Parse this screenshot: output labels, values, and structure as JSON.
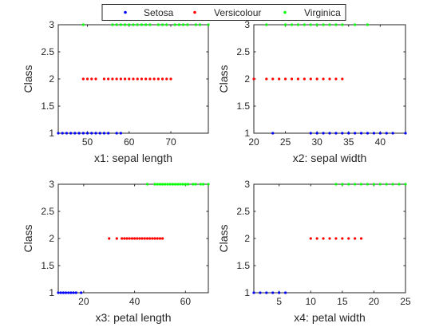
{
  "legend": {
    "placement": "top-center",
    "entries": [
      {
        "name": "Setosa",
        "color": "#0000ff"
      },
      {
        "name": "Versicolour",
        "color": "#ff0000"
      },
      {
        "name": "Virginica",
        "color": "#00ff00"
      }
    ]
  },
  "chart_data": [
    {
      "type": "scatter",
      "xlabel": "x1: sepal length",
      "ylabel": "Class",
      "xlim": [
        43,
        79
      ],
      "ylim": [
        1,
        3
      ],
      "xticks": [
        50,
        60,
        70
      ],
      "yticks": [
        1,
        1.5,
        2,
        2.5,
        3
      ],
      "grid": false,
      "series": [
        {
          "name": "Setosa",
          "y": 1,
          "x": [
            43,
            44,
            45,
            46,
            47,
            48,
            49,
            50,
            51,
            52,
            53,
            54,
            55,
            57,
            58
          ]
        },
        {
          "name": "Versicolour",
          "y": 2,
          "x": [
            49,
            50,
            51,
            52,
            54,
            55,
            56,
            57,
            58,
            59,
            60,
            61,
            62,
            63,
            64,
            65,
            66,
            67,
            68,
            69,
            70
          ]
        },
        {
          "name": "Virginica",
          "y": 3,
          "x": [
            49,
            56,
            57,
            58,
            59,
            60,
            61,
            62,
            63,
            64,
            65,
            67,
            68,
            69,
            71,
            72,
            73,
            74,
            76,
            77,
            79
          ]
        }
      ]
    },
    {
      "type": "scatter",
      "xlabel": "x2: sepal width",
      "ylabel": "Class",
      "xlim": [
        20,
        44
      ],
      "ylim": [
        1,
        3
      ],
      "xticks": [
        20,
        25,
        30,
        35,
        40
      ],
      "yticks": [
        1,
        1.5,
        2,
        2.5,
        3
      ],
      "grid": false,
      "series": [
        {
          "name": "Setosa",
          "y": 1,
          "x": [
            23,
            29,
            30,
            31,
            32,
            33,
            34,
            35,
            36,
            37,
            38,
            39,
            40,
            41,
            42,
            44
          ]
        },
        {
          "name": "Versicolour",
          "y": 2,
          "x": [
            20,
            22,
            23,
            24,
            25,
            26,
            27,
            28,
            29,
            30,
            31,
            32,
            33,
            34
          ]
        },
        {
          "name": "Virginica",
          "y": 3,
          "x": [
            22,
            25,
            26,
            27,
            28,
            29,
            30,
            31,
            32,
            33,
            34,
            36,
            38
          ]
        }
      ]
    },
    {
      "type": "scatter",
      "xlabel": "x3: petal length",
      "ylabel": "Class",
      "xlim": [
        10,
        69
      ],
      "ylim": [
        1,
        3
      ],
      "xticks": [
        20,
        40,
        60
      ],
      "yticks": [
        1,
        1.5,
        2,
        2.5,
        3
      ],
      "grid": false,
      "series": [
        {
          "name": "Setosa",
          "y": 1,
          "x": [
            10,
            11,
            12,
            13,
            14,
            15,
            16,
            17,
            19
          ]
        },
        {
          "name": "Versicolour",
          "y": 2,
          "x": [
            30,
            33,
            35,
            36,
            37,
            38,
            39,
            40,
            41,
            42,
            43,
            44,
            45,
            46,
            47,
            48,
            49,
            50,
            51
          ]
        },
        {
          "name": "Virginica",
          "y": 3,
          "x": [
            45,
            48,
            49,
            50,
            51,
            52,
            53,
            54,
            55,
            56,
            57,
            58,
            59,
            60,
            61,
            63,
            64,
            66,
            67,
            69
          ]
        }
      ]
    },
    {
      "type": "scatter",
      "xlabel": "x4: petal width",
      "ylabel": "Class",
      "xlim": [
        1,
        25
      ],
      "ylim": [
        1,
        3
      ],
      "xticks": [
        5,
        10,
        15,
        20,
        25
      ],
      "yticks": [
        1,
        1.5,
        2,
        2.5,
        3
      ],
      "grid": false,
      "series": [
        {
          "name": "Setosa",
          "y": 1,
          "x": [
            1,
            2,
            3,
            4,
            5,
            6
          ]
        },
        {
          "name": "Versicolour",
          "y": 2,
          "x": [
            10,
            11,
            12,
            13,
            14,
            15,
            16,
            17,
            18
          ]
        },
        {
          "name": "Virginica",
          "y": 3,
          "x": [
            14,
            15,
            16,
            17,
            18,
            19,
            20,
            21,
            22,
            23,
            24,
            25
          ]
        }
      ]
    }
  ]
}
